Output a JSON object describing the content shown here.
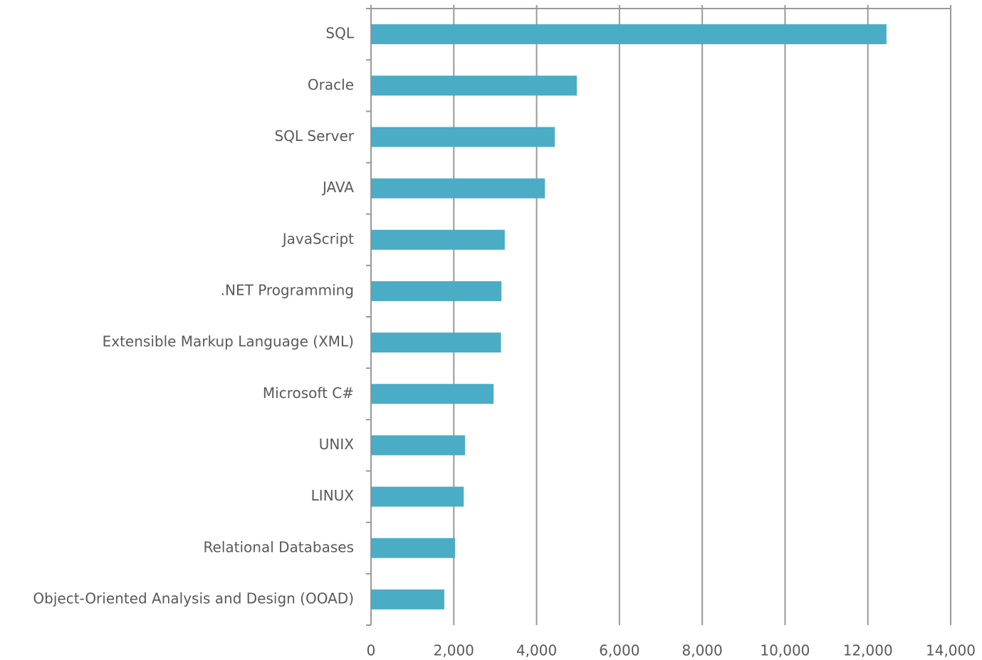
{
  "chart_data": {
    "type": "bar",
    "orientation": "horizontal",
    "categories": [
      "SQL",
      "Oracle",
      "SQL Server",
      "JAVA",
      "JavaScript",
      ".NET Programming",
      "Extensible Markup Language (XML)",
      "Microsoft C#",
      "UNIX",
      "LINUX",
      "Relational Databases",
      "Object-Oriented Analysis and Design (OOAD)"
    ],
    "values": [
      12450,
      4970,
      4440,
      4200,
      3230,
      3150,
      3140,
      2960,
      2270,
      2240,
      2030,
      1770
    ],
    "color": "#4bacc6",
    "xlim": [
      0,
      14000
    ],
    "xticks": [
      0,
      {
        "value": 2000,
        "label": "2,000"
      },
      {
        "value": 4000,
        "label": "4,000"
      },
      {
        "value": 6000,
        "label": "6,000"
      },
      {
        "value": 8000,
        "label": "8,000"
      },
      {
        "value": 10000,
        "label": "10,000"
      },
      {
        "value": 12000,
        "label": "12,000"
      },
      {
        "value": 14000,
        "label": "14,000"
      }
    ],
    "grid": true
  }
}
